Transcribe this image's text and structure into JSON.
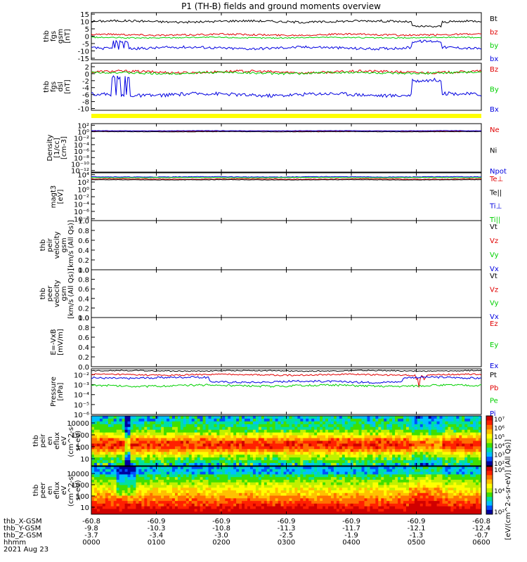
{
  "title": "P1 (TH-B) fields and ground moments overview",
  "colors": {
    "black": "#000000",
    "red": "#e00000",
    "green": "#00d000",
    "blue": "#0000e0",
    "yellow": "#ffff00"
  },
  "time_axis": {
    "ticks": [
      "0000",
      "0100",
      "0200",
      "0300",
      "0400",
      "0500",
      "0600"
    ],
    "orbit_rows": [
      {
        "label": "thb_X-GSM",
        "values": [
          "-60.8",
          "-60.9",
          "-60.9",
          "-60.9",
          "-60.9",
          "-60.9",
          "-60.8"
        ]
      },
      {
        "label": "thb_Y-GSM",
        "values": [
          "-9.8",
          "-10.3",
          "-10.8",
          "-11.3",
          "-11.7",
          "-12.1",
          "-12.4"
        ]
      },
      {
        "label": "thb_Z-GSM",
        "values": [
          "-3.7",
          "-3.4",
          "-3.0",
          "-2.5",
          "-1.9",
          "-1.3",
          "-0.7"
        ]
      },
      {
        "label": "hhmm",
        "values": [
          "0000",
          "0100",
          "0200",
          "0300",
          "0400",
          "0500",
          "0600"
        ]
      }
    ],
    "date": "2021 Aug 23"
  },
  "chart_data": [
    {
      "id": "fgs-gsm",
      "type": "line",
      "ylabel": "thb\nfgs\ngsm\n[nT]",
      "ylim": [
        -16,
        16
      ],
      "yticks": [
        "15",
        "10",
        "5",
        "0",
        "-5",
        "-10",
        "-15"
      ],
      "ytick_values": [
        15,
        10,
        5,
        0,
        -5,
        -10,
        -15
      ],
      "series": [
        {
          "name": "Bt",
          "color": "#000000",
          "base": 10,
          "amp": 1.5
        },
        {
          "name": "bz",
          "color": "#e00000",
          "base": 1,
          "amp": 1.2
        },
        {
          "name": "by",
          "color": "#00d000",
          "base": -1,
          "amp": 0.8
        },
        {
          "name": "bx",
          "color": "#0000e0",
          "base": -8,
          "amp": 1.8
        }
      ]
    },
    {
      "id": "fgs-dsl",
      "type": "line",
      "ylabel": "thb\nfgs\ndsl\n[nT]",
      "ylim": [
        -10.5,
        3
      ],
      "yticks": [
        "2",
        "0",
        "-2",
        "-4",
        "-6",
        "-8",
        "-10"
      ],
      "ytick_values": [
        2,
        0,
        -2,
        -4,
        -6,
        -8,
        -10
      ],
      "series": [
        {
          "name": "Bz",
          "color": "#e00000",
          "base": 0.5,
          "amp": 0.7
        },
        {
          "name": "By",
          "color": "#00d000",
          "base": 0.2,
          "amp": 0.6
        },
        {
          "name": "Bx",
          "color": "#0000e0",
          "base": -6,
          "amp": 1.0
        }
      ]
    },
    {
      "id": "density",
      "type": "line",
      "log": true,
      "ylabel": "Density\n[1/cc]\n[cm-3]",
      "ylim": [
        -12.5,
        2.5
      ],
      "yticks": [
        "10²",
        "10⁰",
        "10⁻²",
        "10⁻⁴",
        "10⁻⁶",
        "10⁻⁸",
        "10⁻¹⁰",
        "10⁻¹²"
      ],
      "ytick_values": [
        2,
        0,
        -2,
        -4,
        -6,
        -8,
        -10,
        -12
      ],
      "series": [
        {
          "name": "Ne",
          "color": "#e00000",
          "base": 0.2,
          "amp": 0.15
        },
        {
          "name": "Ni",
          "color": "#000000",
          "base": 0.0,
          "amp": 0.1
        },
        {
          "name": "Npot",
          "color": "#0000e0",
          "base": 0.3,
          "amp": 0.1
        }
      ]
    },
    {
      "id": "temperature",
      "type": "line",
      "log": true,
      "ylabel": "magt3\n[eV]",
      "ylim": [
        -8.5,
        4.5
      ],
      "yticks": [
        "10⁴",
        "10²",
        "10⁰",
        "10⁻²",
        "10⁻⁴",
        "10⁻⁶",
        "10⁻⁸"
      ],
      "ytick_values": [
        4,
        2,
        0,
        -2,
        -4,
        -6,
        -8
      ],
      "series": [
        {
          "name": "Te⊥",
          "color": "#e00000",
          "base": 2.8,
          "amp": 0.15
        },
        {
          "name": "Te||",
          "color": "#000000",
          "base": 2.6,
          "amp": 0.1
        },
        {
          "name": "Ti⊥",
          "color": "#0000e0",
          "base": 3.4,
          "amp": 0.15
        },
        {
          "name": "Ti||",
          "color": "#00d000",
          "base": 3.2,
          "amp": 0.1
        }
      ]
    },
    {
      "id": "peir-velocity",
      "type": "line",
      "ylabel": "thb\npeir\nvelocity\ngsm\n[km/s (All Qs)]",
      "ylim": [
        0,
        1
      ],
      "yticks": [
        "1.0",
        "0.8",
        "0.6",
        "0.4",
        "0.2",
        "0.0"
      ],
      "ytick_values": [
        1.0,
        0.8,
        0.6,
        0.4,
        0.2,
        0.0
      ],
      "series": [
        {
          "name": "Vt",
          "color": "#000000"
        },
        {
          "name": "Vz",
          "color": "#e00000"
        },
        {
          "name": "Vy",
          "color": "#00d000"
        },
        {
          "name": "Vx",
          "color": "#0000e0"
        }
      ]
    },
    {
      "id": "peer-velocity",
      "type": "line",
      "ylabel": "thb\npeer\nvelocity\ngsm\n[km/s (All Qs)]",
      "ylim": [
        0,
        1
      ],
      "yticks": [
        "1.0",
        "0.8",
        "0.6",
        "0.4",
        "0.2",
        "0.0"
      ],
      "ytick_values": [
        1.0,
        0.8,
        0.6,
        0.4,
        0.2,
        0.0
      ],
      "series": [
        {
          "name": "Vt",
          "color": "#000000"
        },
        {
          "name": "Vz",
          "color": "#e00000"
        },
        {
          "name": "Vy",
          "color": "#00d000"
        },
        {
          "name": "Vx",
          "color": "#0000e0"
        }
      ]
    },
    {
      "id": "e-field",
      "type": "line",
      "ylabel": "E=-VxB\n[mV/m]",
      "ylim": [
        0,
        1
      ],
      "yticks": [
        "1.0",
        "0.8",
        "0.6",
        "0.4",
        "0.2",
        "0.0"
      ],
      "ytick_values": [
        1.0,
        0.8,
        0.6,
        0.4,
        0.2,
        0.0
      ],
      "series": [
        {
          "name": "Ez",
          "color": "#e00000"
        },
        {
          "name": "Ey",
          "color": "#00d000"
        },
        {
          "name": "Ex",
          "color": "#0000e0"
        }
      ]
    },
    {
      "id": "pressure",
      "type": "line",
      "log": true,
      "ylabel": "Pressure\n[nPa]",
      "ylim": [
        -6,
        -1.4
      ],
      "yticks": [
        "10⁻²",
        "10⁻³",
        "10⁻⁴",
        "10⁻⁵",
        "10⁻⁶"
      ],
      "ytick_values": [
        -2,
        -3,
        -4,
        -5,
        -6
      ],
      "series": [
        {
          "name": "Pt",
          "color": "#000000",
          "base": -1.6,
          "amp": 0.1
        },
        {
          "name": "Pb",
          "color": "#e00000",
          "base": -2.0,
          "amp": 0.15
        },
        {
          "name": "Pe",
          "color": "#00d000",
          "base": -3.1,
          "amp": 0.2
        },
        {
          "name": "Pi",
          "color": "#0000e0",
          "base": -2.3,
          "amp": 0.2
        }
      ]
    },
    {
      "id": "peir-eflux",
      "type": "heatmap",
      "ylabel": "thb\npeir\nen\neflux\neV\n(cm^2-s-\nsr-eV)",
      "yticks": [
        "10000",
        "1000",
        "100",
        "10"
      ],
      "log_ylim": [
        0.8,
        4.2
      ]
    },
    {
      "id": "peer-eflux",
      "type": "heatmap",
      "ylabel": "thb\npeer\nen\neflux\neV\n(cm^2-s-\nsr-eV)",
      "yticks": [
        "10000",
        "1000",
        "100",
        "10"
      ],
      "log_ylim": [
        0.8,
        4.2
      ]
    }
  ],
  "colorbars": [
    {
      "ticks": [
        "10⁷",
        "10⁶",
        "10⁵",
        "10⁴",
        "10³",
        "10²"
      ]
    },
    {
      "ticks": [
        "10⁶",
        "10⁴",
        "10²"
      ]
    }
  ],
  "colorbar_label": "[eV/(cm^2-s-sr-eV)] (All Qs)]"
}
